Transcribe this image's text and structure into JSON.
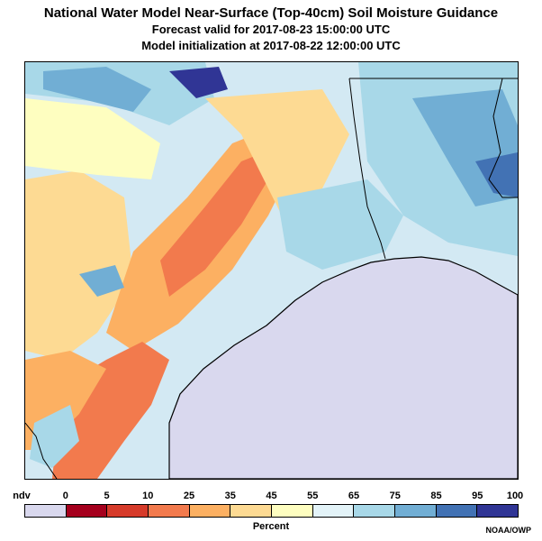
{
  "title": {
    "line1": "National Water Model Near-Surface (Top-40cm) Soil Moisture Guidance",
    "line2": "Forecast valid for 2017-08-23 15:00:00 UTC",
    "line3": "Model initialization at 2017-08-22 12:00:00 UTC"
  },
  "legend": {
    "title": "Percent",
    "labels": [
      "ndv",
      "0",
      "5",
      "10",
      "25",
      "35",
      "45",
      "55",
      "65",
      "75",
      "85",
      "95",
      "100"
    ],
    "colors": [
      "#d9d8ee",
      "#a5001d",
      "#d63b2a",
      "#f27a4d",
      "#fcb062",
      "#fdda93",
      "#fefec0",
      "#e3f3f8",
      "#a8d8e8",
      "#71aed4",
      "#4272b4",
      "#303595"
    ]
  },
  "credit": "NOAA/OWP",
  "map": {
    "ocean_color": "#d9d8ee",
    "coastline_color": "#000000"
  }
}
